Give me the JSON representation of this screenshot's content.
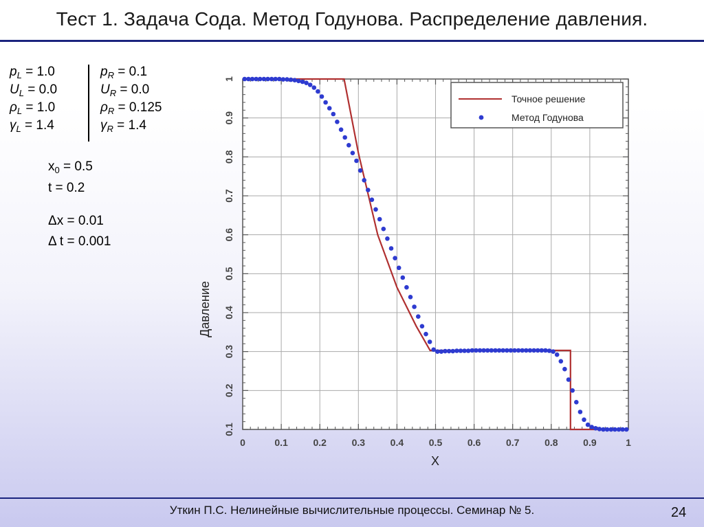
{
  "slide": {
    "title": "Тест 1. Задача Сода. Метод Годунова. Распределение давления.",
    "footer": "Уткин П.С. Нелинейные вычислительные процессы. Семинар № 5.",
    "page_number": "24"
  },
  "params": {
    "left": [
      {
        "sym": "p",
        "sub": "L",
        "val": " = 1.0"
      },
      {
        "sym": "U",
        "sub": "L",
        "val": " = 0.0"
      },
      {
        "sym": "ρ",
        "sub": "L",
        "val": " = 1.0"
      },
      {
        "sym": "γ",
        "sub": "L",
        "val": " = 1.4"
      }
    ],
    "right": [
      {
        "sym": "p",
        "sub": "R",
        "val": " = 0.1"
      },
      {
        "sym": "U",
        "sub": "R",
        "val": " = 0.0"
      },
      {
        "sym": "ρ",
        "sub": "R",
        "val": " = 0.125"
      },
      {
        "sym": "γ",
        "sub": "R",
        "val": " = 1.4"
      }
    ],
    "x0": {
      "sym": "x",
      "sub": "0",
      "val": " = 0.5"
    },
    "t": "t = 0.2",
    "dx": "Δx = 0.01",
    "dt": "Δ t = 0.001"
  },
  "chart_data": {
    "type": "line",
    "xlabel": "X",
    "ylabel": "Давление",
    "xlim": [
      0,
      1
    ],
    "ylim": [
      0.1,
      1
    ],
    "xticks": [
      "0",
      "0.1",
      "0.2",
      "0.3",
      "0.4",
      "0.5",
      "0.6",
      "0.7",
      "0.8",
      "0.9",
      "1"
    ],
    "yticks": [
      "0.1",
      "0.2",
      "0.3",
      "0.4",
      "0.5",
      "0.6",
      "0.7",
      "0.8",
      "0.9",
      "1"
    ],
    "grid": true,
    "legend_position": "top-right",
    "series": [
      {
        "name": "Точное решение",
        "style": "line",
        "color": "#b03030",
        "x": [
          0,
          0.263,
          0.3,
          0.35,
          0.4,
          0.45,
          0.486,
          0.5,
          0.6,
          0.7,
          0.85,
          0.85,
          1
        ],
        "y": [
          1.0,
          1.0,
          0.81,
          0.6,
          0.465,
          0.365,
          0.303,
          0.303,
          0.303,
          0.303,
          0.303,
          0.1,
          0.1
        ]
      },
      {
        "name": "Метод Годунова",
        "style": "markers",
        "color": "#2e3bd0",
        "x": [
          0.005,
          0.015,
          0.025,
          0.035,
          0.045,
          0.055,
          0.065,
          0.075,
          0.085,
          0.095,
          0.105,
          0.115,
          0.125,
          0.135,
          0.145,
          0.155,
          0.165,
          0.175,
          0.185,
          0.195,
          0.205,
          0.215,
          0.225,
          0.235,
          0.245,
          0.255,
          0.265,
          0.275,
          0.285,
          0.295,
          0.305,
          0.315,
          0.325,
          0.335,
          0.345,
          0.355,
          0.365,
          0.375,
          0.385,
          0.395,
          0.405,
          0.415,
          0.425,
          0.435,
          0.445,
          0.455,
          0.465,
          0.475,
          0.485,
          0.495,
          0.505,
          0.515,
          0.525,
          0.535,
          0.545,
          0.555,
          0.565,
          0.575,
          0.585,
          0.595,
          0.605,
          0.615,
          0.625,
          0.635,
          0.645,
          0.655,
          0.665,
          0.675,
          0.685,
          0.695,
          0.705,
          0.715,
          0.725,
          0.735,
          0.745,
          0.755,
          0.765,
          0.775,
          0.785,
          0.795,
          0.805,
          0.815,
          0.825,
          0.835,
          0.845,
          0.855,
          0.865,
          0.875,
          0.885,
          0.895,
          0.905,
          0.915,
          0.925,
          0.935,
          0.945,
          0.955,
          0.965,
          0.975,
          0.985,
          0.995
        ],
        "y": [
          1.0,
          1.0,
          1.0,
          1.0,
          1.0,
          1.0,
          1.0,
          1.0,
          1.0,
          1.0,
          0.999,
          0.999,
          0.998,
          0.997,
          0.995,
          0.993,
          0.99,
          0.985,
          0.978,
          0.968,
          0.955,
          0.94,
          0.925,
          0.91,
          0.89,
          0.87,
          0.85,
          0.83,
          0.81,
          0.79,
          0.765,
          0.74,
          0.715,
          0.69,
          0.665,
          0.64,
          0.615,
          0.59,
          0.565,
          0.54,
          0.515,
          0.49,
          0.465,
          0.44,
          0.415,
          0.39,
          0.365,
          0.345,
          0.325,
          0.305,
          0.3,
          0.3,
          0.301,
          0.301,
          0.301,
          0.302,
          0.302,
          0.302,
          0.302,
          0.303,
          0.303,
          0.303,
          0.303,
          0.303,
          0.303,
          0.303,
          0.303,
          0.303,
          0.303,
          0.303,
          0.303,
          0.303,
          0.303,
          0.303,
          0.303,
          0.303,
          0.303,
          0.303,
          0.303,
          0.302,
          0.3,
          0.292,
          0.275,
          0.255,
          0.228,
          0.2,
          0.17,
          0.145,
          0.125,
          0.112,
          0.106,
          0.103,
          0.101,
          0.1,
          0.1,
          0.1,
          0.1,
          0.1,
          0.1,
          0.1
        ]
      }
    ]
  }
}
